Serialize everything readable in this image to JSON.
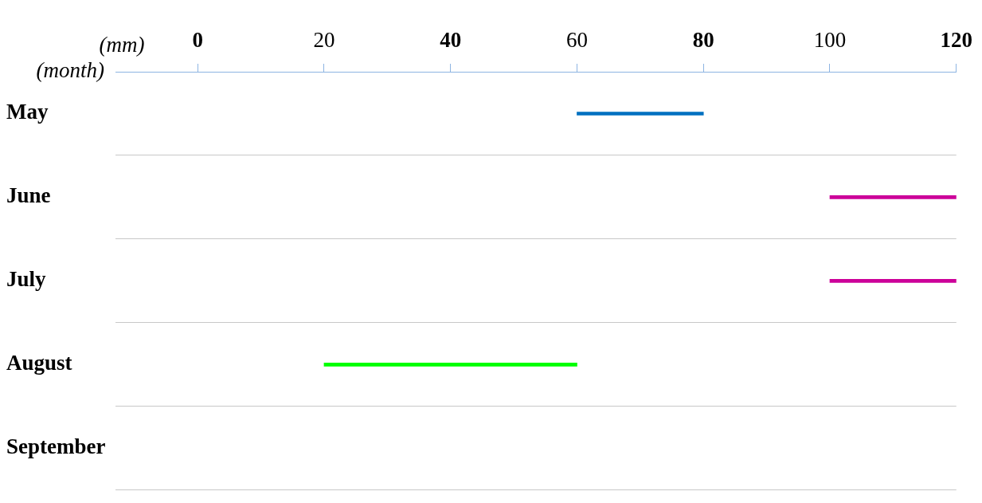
{
  "chart_data": {
    "type": "bar",
    "orientation": "horizontal",
    "xlabel": "(mm)",
    "ylabel": "(month)",
    "categories": [
      "May",
      "June",
      "July",
      "August",
      "September"
    ],
    "base": [
      60,
      100,
      100,
      20,
      null
    ],
    "values": [
      20,
      20,
      20,
      40,
      null
    ],
    "colors": [
      "#0070c0",
      "#cc0099",
      "#cc0099",
      "#00ff00",
      "#000000"
    ],
    "xlim": [
      -13,
      120
    ],
    "xticks": [
      0,
      20,
      40,
      60,
      80,
      100,
      120
    ],
    "grid": "y",
    "legend": false
  }
}
